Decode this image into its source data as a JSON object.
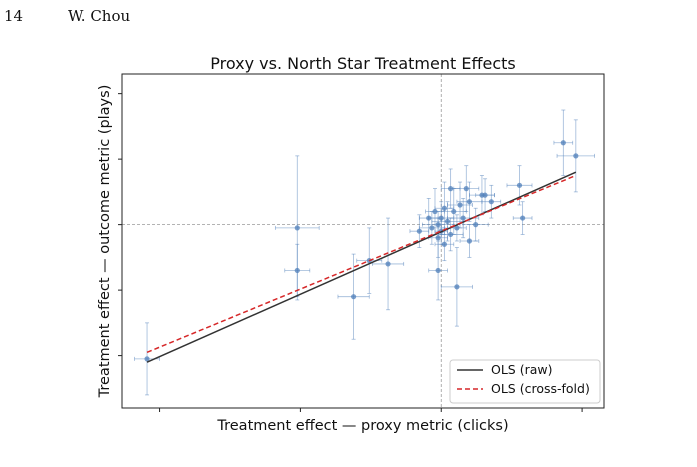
{
  "page": {
    "page_number": "14",
    "running_head": "W. Chou"
  },
  "chart_data": {
    "type": "scatter",
    "title": "Proxy vs. North Star Treatment Effects",
    "xlabel": "Treatment effect — proxy metric (clicks)",
    "ylabel": "Treatment effect — outcome metric (plays)",
    "xlim": [
      -1.02,
      0.52
    ],
    "ylim": [
      -0.56,
      0.46
    ],
    "reference_lines": {
      "x": 0,
      "y": 0
    },
    "grid": false,
    "legend_position": "lower-right",
    "colors": {
      "points": "#4f7fba",
      "ols_raw": "#333333",
      "ols_crossfold": "#d62728"
    },
    "series": [
      {
        "name": "",
        "style": "points-with-error-bars",
        "points": [
          {
            "x": -0.94,
            "y": -0.41,
            "xerr": 0.04,
            "yerr": 0.11
          },
          {
            "x": -0.46,
            "y": -0.01,
            "xerr": 0.07,
            "yerr": 0.22
          },
          {
            "x": -0.46,
            "y": -0.14,
            "xerr": 0.04,
            "yerr": 0.08
          },
          {
            "x": -0.28,
            "y": -0.22,
            "xerr": 0.05,
            "yerr": 0.13
          },
          {
            "x": -0.23,
            "y": -0.11,
            "xerr": 0.04,
            "yerr": 0.1
          },
          {
            "x": -0.17,
            "y": -0.12,
            "xerr": 0.05,
            "yerr": 0.14
          },
          {
            "x": -0.07,
            "y": -0.02,
            "xerr": 0.03,
            "yerr": 0.05
          },
          {
            "x": -0.04,
            "y": 0.02,
            "xerr": 0.03,
            "yerr": 0.06
          },
          {
            "x": -0.03,
            "y": -0.01,
            "xerr": 0.04,
            "yerr": 0.05
          },
          {
            "x": -0.02,
            "y": 0.04,
            "xerr": 0.03,
            "yerr": 0.07
          },
          {
            "x": -0.01,
            "y": 0.0,
            "xerr": 0.05,
            "yerr": 0.04
          },
          {
            "x": -0.01,
            "y": -0.04,
            "xerr": 0.03,
            "yerr": 0.06
          },
          {
            "x": 0.0,
            "y": 0.02,
            "xerr": 0.04,
            "yerr": 0.05
          },
          {
            "x": 0.0,
            "y": -0.02,
            "xerr": 0.02,
            "yerr": 0.04
          },
          {
            "x": 0.01,
            "y": 0.05,
            "xerr": 0.03,
            "yerr": 0.08
          },
          {
            "x": 0.01,
            "y": -0.06,
            "xerr": 0.03,
            "yerr": 0.05
          },
          {
            "x": 0.02,
            "y": 0.01,
            "xerr": 0.05,
            "yerr": 0.06
          },
          {
            "x": -0.01,
            "y": -0.14,
            "xerr": 0.03,
            "yerr": 0.09
          },
          {
            "x": 0.03,
            "y": -0.03,
            "xerr": 0.04,
            "yerr": 0.05
          },
          {
            "x": 0.03,
            "y": 0.11,
            "xerr": 0.03,
            "yerr": 0.06
          },
          {
            "x": 0.04,
            "y": 0.04,
            "xerr": 0.04,
            "yerr": 0.07
          },
          {
            "x": 0.05,
            "y": -0.01,
            "xerr": 0.03,
            "yerr": 0.04
          },
          {
            "x": 0.06,
            "y": 0.06,
            "xerr": 0.04,
            "yerr": 0.07
          },
          {
            "x": 0.05,
            "y": -0.19,
            "xerr": 0.05,
            "yerr": 0.12
          },
          {
            "x": 0.07,
            "y": 0.02,
            "xerr": 0.05,
            "yerr": 0.06
          },
          {
            "x": 0.08,
            "y": 0.11,
            "xerr": 0.04,
            "yerr": 0.07
          },
          {
            "x": 0.09,
            "y": 0.07,
            "xerr": 0.04,
            "yerr": 0.06
          },
          {
            "x": 0.09,
            "y": -0.05,
            "xerr": 0.03,
            "yerr": 0.05
          },
          {
            "x": 0.11,
            "y": 0.0,
            "xerr": 0.04,
            "yerr": 0.05
          },
          {
            "x": 0.13,
            "y": 0.09,
            "xerr": 0.04,
            "yerr": 0.06
          },
          {
            "x": 0.14,
            "y": 0.09,
            "xerr": 0.03,
            "yerr": 0.05
          },
          {
            "x": 0.16,
            "y": 0.07,
            "xerr": 0.03,
            "yerr": 0.05
          },
          {
            "x": 0.25,
            "y": 0.12,
            "xerr": 0.04,
            "yerr": 0.06
          },
          {
            "x": 0.26,
            "y": 0.02,
            "xerr": 0.03,
            "yerr": 0.05
          },
          {
            "x": 0.39,
            "y": 0.25,
            "xerr": 0.03,
            "yerr": 0.1
          },
          {
            "x": 0.43,
            "y": 0.21,
            "xerr": 0.06,
            "yerr": 0.11
          }
        ]
      }
    ],
    "lines": [
      {
        "name": "OLS (raw)",
        "x": [
          -0.94,
          0.43
        ],
        "y": [
          -0.42,
          0.16
        ],
        "style": "solid"
      },
      {
        "name": "OLS (cross-fold)",
        "x": [
          -0.94,
          0.43
        ],
        "y": [
          -0.39,
          0.15
        ],
        "style": "dashed"
      }
    ]
  }
}
